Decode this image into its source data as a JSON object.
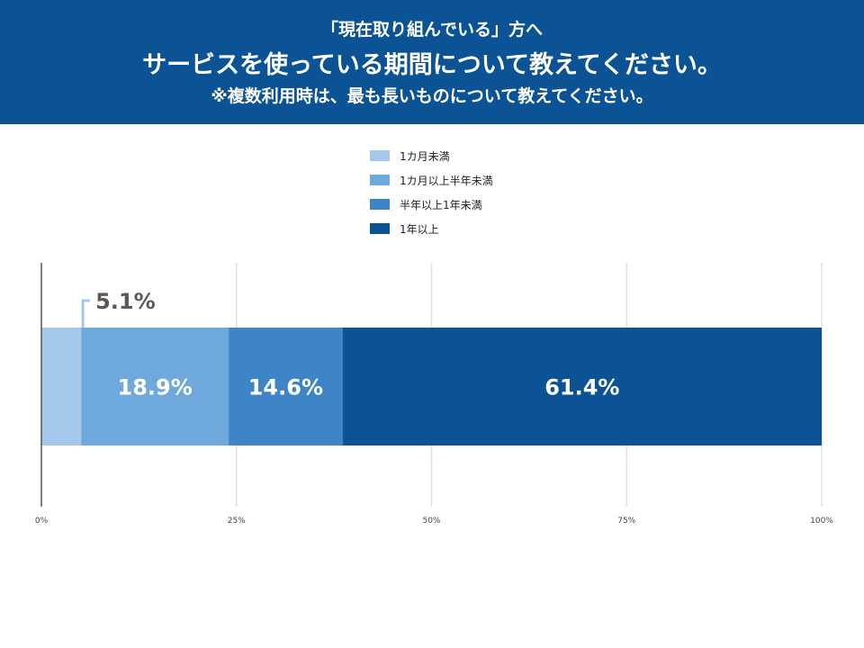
{
  "header": {
    "line1": "「現在取り組んでいる」方へ",
    "line2": "サービスを使っている期間について教えてください。",
    "line3": "※複数利用時は、最も長いものについて教えてください。"
  },
  "chart_data": {
    "type": "bar",
    "orientation": "horizontal",
    "stacked": true,
    "xlim": [
      0,
      100
    ],
    "x_ticks": [
      "0%",
      "25%",
      "50%",
      "75%",
      "100%"
    ],
    "grid": true,
    "legend_position": "top",
    "series": [
      {
        "name": "1カ月未満",
        "value": 5.1,
        "label": "5.1%",
        "color": "#a4c8ec"
      },
      {
        "name": "1カ月以上半年未満",
        "value": 18.9,
        "label": "18.9%",
        "color": "#6fa8dc"
      },
      {
        "name": "半年以上1年未満",
        "value": 14.6,
        "label": "14.6%",
        "color": "#3d85c6"
      },
      {
        "name": "1年以上",
        "value": 61.4,
        "label": "61.4%",
        "color": "#0b5394"
      }
    ]
  }
}
